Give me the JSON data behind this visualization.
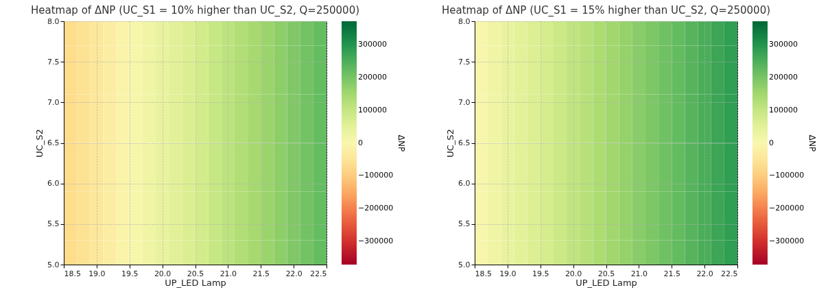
{
  "chart_data": [
    {
      "type": "heatmap",
      "title": "Heatmap of ΔNP (UC_S1 = 10% higher than UC_S2, Q=250000)",
      "xlabel": "UP_LED Lamp",
      "ylabel": "UC_S2",
      "clabel": "ΔNP",
      "grid": true,
      "x": [
        18.6,
        18.8,
        19,
        19.2,
        19.4,
        19.6,
        19.8,
        20,
        20.2,
        20.4,
        20.6,
        20.8,
        21,
        21.2,
        21.4,
        21.6,
        21.8,
        22,
        22.2,
        22.4
      ],
      "y": [
        7.85,
        7.55,
        7.25,
        6.95,
        6.65,
        6.35,
        6.05,
        5.75,
        5.45,
        5.15
      ],
      "cells": [
        [
          -74000,
          -58500,
          -43000,
          -27500,
          -12000,
          3500,
          19000,
          34500,
          50000,
          65500,
          81000,
          96500,
          112000,
          127500,
          143000,
          158500,
          174000,
          189500,
          205000,
          220500
        ],
        [
          -74000,
          -58500,
          -43000,
          -27500,
          -12000,
          3500,
          19000,
          34500,
          50000,
          65500,
          81000,
          96500,
          112000,
          127500,
          143000,
          158500,
          174000,
          189500,
          205000,
          220500
        ],
        [
          -74000,
          -58500,
          -43000,
          -27500,
          -12000,
          3500,
          19000,
          34500,
          50000,
          65500,
          81000,
          96500,
          112000,
          127500,
          143000,
          158500,
          174000,
          189500,
          205000,
          220500
        ],
        [
          -74000,
          -58500,
          -43000,
          -27500,
          -12000,
          3500,
          19000,
          34500,
          50000,
          65500,
          81000,
          96500,
          112000,
          127500,
          143000,
          158500,
          174000,
          189500,
          205000,
          220500
        ],
        [
          -74000,
          -58500,
          -43000,
          -27500,
          -12000,
          3500,
          19000,
          34500,
          50000,
          65500,
          81000,
          96500,
          112000,
          127500,
          143000,
          158500,
          174000,
          189500,
          205000,
          220500
        ],
        [
          -74000,
          -58500,
          -43000,
          -27500,
          -12000,
          3500,
          19000,
          34500,
          50000,
          65500,
          81000,
          96500,
          112000,
          127500,
          143000,
          158500,
          174000,
          189500,
          205000,
          220500
        ],
        [
          -74000,
          -58500,
          -43000,
          -27500,
          -12000,
          3500,
          19000,
          34500,
          50000,
          65500,
          81000,
          96500,
          112000,
          127500,
          143000,
          158500,
          174000,
          189500,
          205000,
          220500
        ],
        [
          -74000,
          -58500,
          -43000,
          -27500,
          -12000,
          3500,
          19000,
          34500,
          50000,
          65500,
          81000,
          96500,
          112000,
          127500,
          143000,
          158500,
          174000,
          189500,
          205000,
          220500
        ],
        [
          -74000,
          -58500,
          -43000,
          -27500,
          -12000,
          3500,
          19000,
          34500,
          50000,
          65500,
          81000,
          96500,
          112000,
          127500,
          143000,
          158500,
          174000,
          189500,
          205000,
          220500
        ],
        [
          -74000,
          -58500,
          -43000,
          -27500,
          -12000,
          3500,
          19000,
          34500,
          50000,
          65500,
          81000,
          96500,
          112000,
          127500,
          143000,
          158500,
          174000,
          189500,
          205000,
          220500
        ]
      ],
      "xlim": [
        18.5,
        22.5
      ],
      "xticks": [
        18.5,
        {
          "value": 19,
          "label": "19.0"
        },
        19.5,
        {
          "value": 20,
          "label": "20.0"
        },
        20.5,
        {
          "value": 21,
          "label": "21.0"
        },
        21.5,
        {
          "value": 22,
          "label": "22.0"
        },
        22.5
      ],
      "ylim": [
        5,
        8
      ],
      "yticks": [
        {
          "value": 5,
          "label": "5.0"
        },
        5.5,
        {
          "value": 6,
          "label": "6.0"
        },
        6.5,
        {
          "value": 7,
          "label": "7.0"
        },
        7.5,
        {
          "value": 8,
          "label": "8.0"
        }
      ],
      "clim": [
        -370000,
        370000
      ],
      "cticks": [
        {
          "value": -300000,
          "label": "−300000"
        },
        {
          "value": -200000,
          "label": "−200000"
        },
        {
          "value": -100000,
          "label": "−100000"
        },
        0,
        100000,
        200000,
        300000
      ]
    },
    {
      "type": "heatmap",
      "title": "Heatmap of ΔNP (UC_S1 = 15% higher than UC_S2, Q=250000)",
      "xlabel": "UP_LED Lamp",
      "ylabel": "UC_S2",
      "clabel": "ΔNP",
      "grid": true,
      "x": [
        18.6,
        18.8,
        19,
        19.2,
        19.4,
        19.6,
        19.8,
        20,
        20.2,
        20.4,
        20.6,
        20.8,
        21,
        21.2,
        21.4,
        21.6,
        21.8,
        22,
        22.2,
        22.4
      ],
      "y": [
        7.85,
        7.55,
        7.25,
        6.95,
        6.65,
        6.35,
        6.05,
        5.75,
        5.45,
        5.15
      ],
      "cells": [
        [
          5000,
          19500,
          34000,
          48500,
          63000,
          77500,
          92000,
          106500,
          121000,
          135500,
          150000,
          164500,
          179000,
          193500,
          208000,
          222500,
          237000,
          251500,
          266000,
          280500
        ],
        [
          5000,
          19500,
          34000,
          48500,
          63000,
          77500,
          92000,
          106500,
          121000,
          135500,
          150000,
          164500,
          179000,
          193500,
          208000,
          222500,
          237000,
          251500,
          266000,
          280500
        ],
        [
          5000,
          19500,
          34000,
          48500,
          63000,
          77500,
          92000,
          106500,
          121000,
          135500,
          150000,
          164500,
          179000,
          193500,
          208000,
          222500,
          237000,
          251500,
          266000,
          280500
        ],
        [
          5000,
          19500,
          34000,
          48500,
          63000,
          77500,
          92000,
          106500,
          121000,
          135500,
          150000,
          164500,
          179000,
          193500,
          208000,
          222500,
          237000,
          251500,
          266000,
          280500
        ],
        [
          5000,
          19500,
          34000,
          48500,
          63000,
          77500,
          92000,
          106500,
          121000,
          135500,
          150000,
          164500,
          179000,
          193500,
          208000,
          222500,
          237000,
          251500,
          266000,
          280500
        ],
        [
          5000,
          19500,
          34000,
          48500,
          63000,
          77500,
          92000,
          106500,
          121000,
          135500,
          150000,
          164500,
          179000,
          193500,
          208000,
          222500,
          237000,
          251500,
          266000,
          280500
        ],
        [
          5000,
          19500,
          34000,
          48500,
          63000,
          77500,
          92000,
          106500,
          121000,
          135500,
          150000,
          164500,
          179000,
          193500,
          208000,
          222500,
          237000,
          251500,
          266000,
          280500
        ],
        [
          5000,
          19500,
          34000,
          48500,
          63000,
          77500,
          92000,
          106500,
          121000,
          135500,
          150000,
          164500,
          179000,
          193500,
          208000,
          222500,
          237000,
          251500,
          266000,
          280500
        ],
        [
          5000,
          19500,
          34000,
          48500,
          63000,
          77500,
          92000,
          106500,
          121000,
          135500,
          150000,
          164500,
          179000,
          193500,
          208000,
          222500,
          237000,
          251500,
          266000,
          280500
        ],
        [
          5000,
          19500,
          34000,
          48500,
          63000,
          77500,
          92000,
          106500,
          121000,
          135500,
          150000,
          164500,
          179000,
          193500,
          208000,
          222500,
          237000,
          251500,
          266000,
          280500
        ]
      ],
      "xlim": [
        18.5,
        22.5
      ],
      "xticks": [
        18.5,
        {
          "value": 19,
          "label": "19.0"
        },
        19.5,
        {
          "value": 20,
          "label": "20.0"
        },
        20.5,
        {
          "value": 21,
          "label": "21.0"
        },
        21.5,
        {
          "value": 22,
          "label": "22.0"
        },
        22.5
      ],
      "ylim": [
        5,
        8
      ],
      "yticks": [
        {
          "value": 5,
          "label": "5.0"
        },
        5.5,
        {
          "value": 6,
          "label": "6.0"
        },
        6.5,
        {
          "value": 7,
          "label": "7.0"
        },
        7.5,
        {
          "value": 8,
          "label": "8.0"
        }
      ],
      "clim": [
        -370000,
        370000
      ],
      "cticks": [
        {
          "value": -300000,
          "label": "−300000"
        },
        {
          "value": -200000,
          "label": "−200000"
        },
        {
          "value": -100000,
          "label": "−100000"
        },
        0,
        100000,
        200000,
        300000
      ]
    }
  ]
}
